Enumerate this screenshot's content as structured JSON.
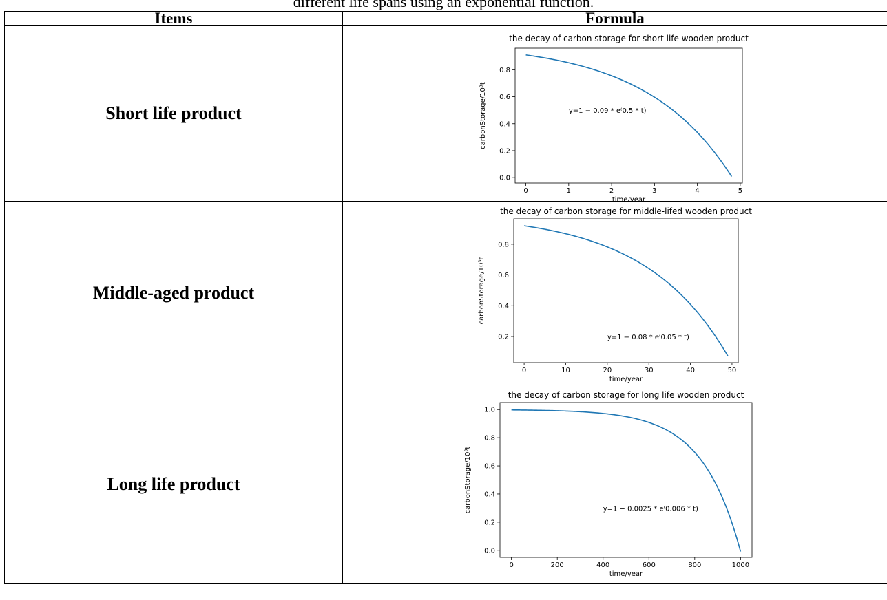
{
  "caption": "different life spans using an exponential function.",
  "table": {
    "header_items": "Items",
    "header_formula": "Formula",
    "rows": [
      {
        "label": "Short life product"
      },
      {
        "label": "Middle-aged product"
      },
      {
        "label": "Long life product"
      }
    ]
  },
  "chart_data": [
    {
      "type": "line",
      "title": "the decay of carbon storage for short life wooden product",
      "xlabel": "time/year",
      "ylabel": "carbonStorage/10³t",
      "annotation": "y=1 − 0.09 * e⁽0.5 * t)",
      "xlim": [
        -0.25,
        5.05
      ],
      "ylim": [
        -0.04,
        0.96
      ],
      "xticks": [
        0,
        1,
        2,
        3,
        4,
        5
      ],
      "yticks": [
        0.0,
        0.2,
        0.4,
        0.6,
        0.8
      ],
      "ytick_labels": [
        "0.0",
        "0.2",
        "0.4",
        "0.6",
        "0.8"
      ],
      "function": {
        "a": 0.09,
        "b": 0.5,
        "t_max": 4.8
      },
      "annotation_pos": [
        1.0,
        0.5
      ],
      "series": [
        {
          "color": "#1f77b4"
        }
      ]
    },
    {
      "type": "line",
      "title": "the decay of carbon storage for middle-lifed wooden product",
      "xlabel": "time/year",
      "ylabel": "carbonStorage/10³t",
      "annotation": "y=1 − 0.08 * e⁽0.05 * t)",
      "xlim": [
        -2.5,
        51.5
      ],
      "ylim": [
        0.03,
        0.965
      ],
      "xticks": [
        0,
        10,
        20,
        30,
        40,
        50
      ],
      "yticks": [
        0.2,
        0.4,
        0.6,
        0.8
      ],
      "ytick_labels": [
        "0.2",
        "0.4",
        "0.6",
        "0.8"
      ],
      "function": {
        "a": 0.08,
        "b": 0.05,
        "t_max": 49
      },
      "annotation_pos": [
        20,
        0.2
      ],
      "series": [
        {
          "color": "#1f77b4"
        }
      ]
    },
    {
      "type": "line",
      "title": "the decay of carbon storage for long life wooden product",
      "xlabel": "time/year",
      "ylabel": "carbonStorage/10³t",
      "annotation": "y=1 − 0.0025 * e⁽0.006 * t)",
      "xlim": [
        -50,
        1050
      ],
      "ylim": [
        -0.05,
        1.05
      ],
      "xticks": [
        0,
        200,
        400,
        600,
        800,
        1000
      ],
      "yticks": [
        0.0,
        0.2,
        0.4,
        0.6,
        0.8,
        1.0
      ],
      "ytick_labels": [
        "0.0",
        "0.2",
        "0.4",
        "0.6",
        "0.8",
        "1.0"
      ],
      "function": {
        "a": 0.0025,
        "b": 0.006,
        "t_max": 1000
      },
      "annotation_pos": [
        400,
        0.3
      ],
      "series": [
        {
          "color": "#1f77b4"
        }
      ]
    }
  ]
}
